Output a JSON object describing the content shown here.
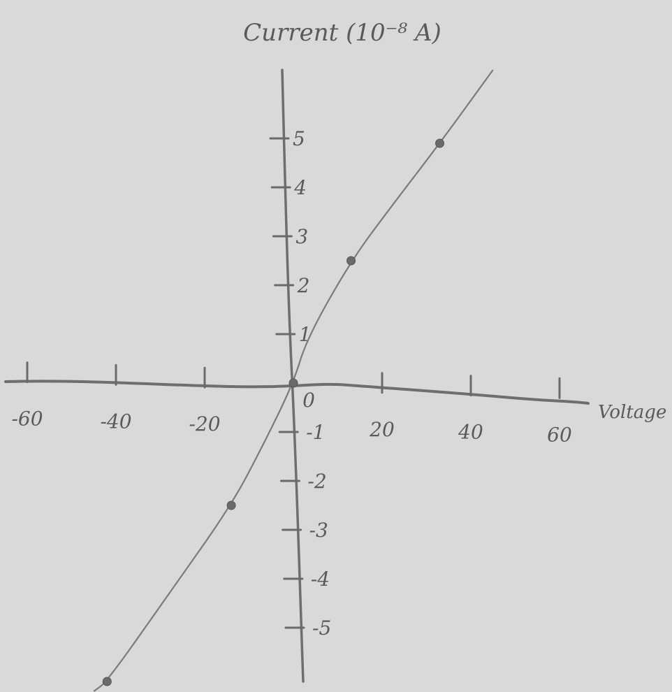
{
  "chart_data": {
    "type": "line",
    "title": "",
    "xlabel": "Voltage (mV)",
    "ylabel": "Current (10⁻⁸ A)",
    "xlim": [
      -70,
      70
    ],
    "ylim": [
      -6,
      6
    ],
    "x_ticks": [
      {
        "value": -60,
        "label": "-60"
      },
      {
        "value": -40,
        "label": "-40"
      },
      {
        "value": -20,
        "label": "-20"
      },
      {
        "value": 0,
        "label": "0"
      },
      {
        "value": 20,
        "label": "20"
      },
      {
        "value": 40,
        "label": "40"
      },
      {
        "value": 60,
        "label": "60"
      }
    ],
    "y_ticks": [
      {
        "value": 5,
        "label": "5"
      },
      {
        "value": 4,
        "label": "4"
      },
      {
        "value": 3,
        "label": "3"
      },
      {
        "value": 2,
        "label": "2"
      },
      {
        "value": 1,
        "label": "1"
      },
      {
        "value": -1,
        "label": "-1"
      },
      {
        "value": -2,
        "label": "-2"
      },
      {
        "value": -3,
        "label": "-3"
      },
      {
        "value": -4,
        "label": "-4"
      },
      {
        "value": -5,
        "label": "-5"
      }
    ],
    "grid": false,
    "series": [
      {
        "points": [
          {
            "x": -42,
            "y": -6.1
          },
          {
            "x": -14,
            "y": -2.5
          },
          {
            "x": 0,
            "y": 0
          },
          {
            "x": 13,
            "y": 2.5
          },
          {
            "x": 33,
            "y": 4.9
          }
        ],
        "curve": [
          {
            "x": -45,
            "y": -6.3
          },
          {
            "x": -42,
            "y": -6.1
          },
          {
            "x": -28,
            "y": -4.3
          },
          {
            "x": -14,
            "y": -2.5
          },
          {
            "x": -7,
            "y": -1.3
          },
          {
            "x": 0,
            "y": 0
          },
          {
            "x": 3,
            "y": 0.9
          },
          {
            "x": 13,
            "y": 2.5
          },
          {
            "x": 22,
            "y": 3.6
          },
          {
            "x": 33,
            "y": 4.9
          },
          {
            "x": 45,
            "y": 6.4
          }
        ]
      }
    ]
  }
}
